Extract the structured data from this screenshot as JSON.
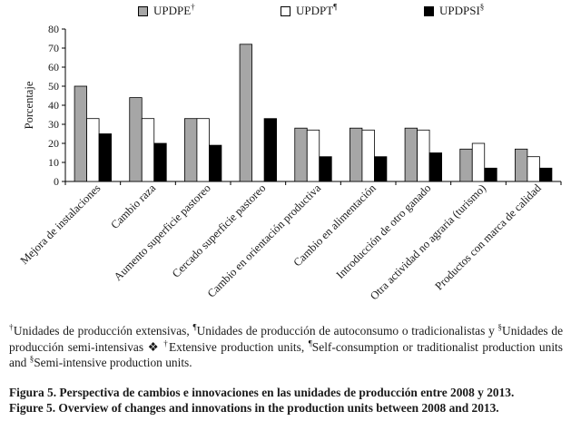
{
  "chart_data": {
    "type": "bar",
    "title": "",
    "xlabel": "",
    "ylabel": "Porcentaje",
    "ylim": [
      0,
      80
    ],
    "yticks": [
      0,
      10,
      20,
      30,
      40,
      50,
      60,
      70,
      80
    ],
    "grid": false,
    "legend_position": "top",
    "categories": [
      "Mejora de instalaciones",
      "Cambio raza",
      "Aumento superficie pastoreo",
      "Cercado superficie pastoreo",
      "Cambio en orientación productiva",
      "Cambio en alimentación",
      "Introducción de otro ganado",
      "Otra actividad no agraria (turismo)",
      "Productos con marca de calidad"
    ],
    "series": [
      {
        "name": "UPDPE",
        "marker": "†",
        "color": "#a6a6a6",
        "values": [
          50,
          44,
          33,
          72,
          28,
          28,
          28,
          17,
          17
        ]
      },
      {
        "name": "UPDPT",
        "marker": "¶",
        "color": "#ffffff",
        "values": [
          33,
          33,
          33,
          0,
          27,
          27,
          27,
          20,
          13
        ]
      },
      {
        "name": "UPDPSI",
        "marker": "§",
        "color": "#000000",
        "values": [
          25,
          20,
          19,
          33,
          13,
          13,
          15,
          7,
          7
        ]
      }
    ]
  },
  "footnote": {
    "p1_mark": "†",
    "p1_text": "Unidades de producción extensivas, ",
    "p2_mark": "¶",
    "p2_text": "Unidades de producción de autoconsumo o tradicionalistas y ",
    "p3_mark": "§",
    "p3_text": "Unidades de producción semi-intensivas ",
    "sep": "❖",
    "e1_mark": "†",
    "e1_text": "Extensive production units, ",
    "e2_mark": "¶",
    "e2_text": "Self-consumption or traditionalist production units and ",
    "e3_mark": "§",
    "e3_text": "Semi-intensive production units."
  },
  "caption": {
    "es": "Figura 5. Perspectiva de cambios e innovaciones en las unidades de producción entre 2008 y 2013.",
    "en": "Figure 5. Overview of changes and innovations in the production units between 2008 and 2013."
  }
}
